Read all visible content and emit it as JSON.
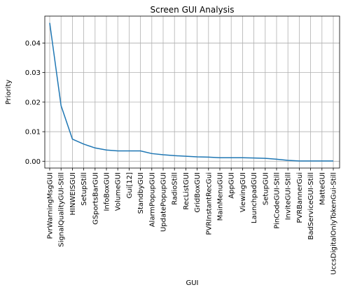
{
  "chart_data": {
    "type": "line",
    "title": "Screen GUI Analysis",
    "xlabel": "GUI",
    "ylabel": "Priority",
    "categories": [
      "PvrWarningMsgGUI",
      "SignalQualityGUI-Still",
      "HINWEISGUI",
      "SetupStill",
      "GSportsBarGUI",
      "InfoBoxGUI",
      "VolumeGUI",
      "Gui[12]",
      "StandbyGUI",
      "AlarmPopupGUI",
      "UpdatePopupGUI",
      "RadioStill",
      "RecListGUI",
      "GridBoxGUI",
      "PVRInstantRecGui",
      "MainMenuGUI",
      "AppGUI",
      "ViewingGUI",
      "LaunchpadGUI",
      "SetupGUI",
      "PinCodeGUI-Still",
      "InviteGUI-Still",
      "PVRBannerGui",
      "BadServiceGUI-Still",
      "MatteGUI",
      "UccsDigitalOnlyTokenGui-Still"
    ],
    "values": [
      0.0468,
      0.0188,
      0.0075,
      0.0058,
      0.0045,
      0.0038,
      0.0035,
      0.0035,
      0.0035,
      0.0026,
      0.0022,
      0.0019,
      0.0017,
      0.0015,
      0.0014,
      0.0012,
      0.0012,
      0.0012,
      0.0011,
      0.001,
      0.0007,
      0.0003,
      0.0001,
      0.0001,
      0.0001,
      0.0001
    ],
    "yticks": [
      "0.00",
      "0.01",
      "0.02",
      "0.03",
      "0.04"
    ],
    "ytick_values": [
      0,
      0.01,
      0.02,
      0.03,
      0.04
    ],
    "ylim": [
      -0.0023,
      0.0491
    ],
    "grid": true,
    "line_color": "#1f77b4"
  }
}
